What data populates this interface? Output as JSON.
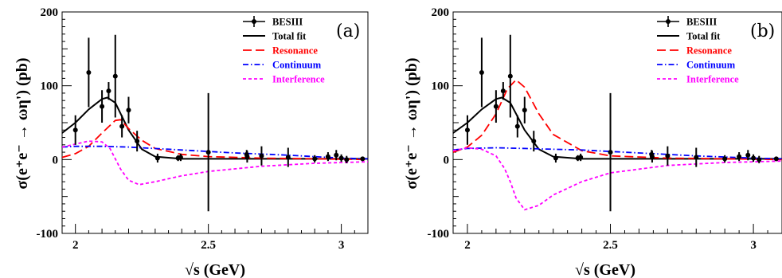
{
  "chart_data": [
    {
      "type": "line",
      "panel_label": "(a)",
      "xlabel": "√s (GeV)",
      "ylabel": "σ(e⁺e⁻ → ωη') (pb)",
      "xlim": [
        1.95,
        3.1
      ],
      "ylim": [
        -100,
        200
      ],
      "x_ticks": [
        2,
        2.5,
        3
      ],
      "y_ticks": [
        -100,
        0,
        100,
        200
      ],
      "legend_position": "top-right",
      "legend": [
        "BESIII",
        "Total fit",
        "Resonance",
        "Continuum",
        "Interference"
      ],
      "data_points": {
        "name": "BESIII",
        "x": [
          2.0,
          2.05,
          2.1,
          2.125,
          2.15,
          2.175,
          2.2,
          2.232,
          2.309,
          2.386,
          2.396,
          2.5,
          2.644,
          2.646,
          2.7,
          2.8,
          2.9,
          2.95,
          2.981,
          3.0,
          3.02,
          3.08
        ],
        "y": [
          40,
          118,
          72,
          93,
          113,
          45,
          67,
          25,
          2,
          2,
          3,
          10,
          7,
          4,
          5,
          3,
          1,
          4,
          6,
          2,
          0,
          1
        ],
        "yerr": [
          20,
          47,
          22,
          12,
          56,
          15,
          18,
          14,
          6,
          4,
          5,
          80,
          6,
          8,
          13,
          13,
          5,
          6,
          7,
          5,
          5,
          3
        ]
      },
      "series": [
        {
          "name": "Total fit",
          "color": "#000000",
          "x": [
            1.95,
            2.0,
            2.05,
            2.1,
            2.12,
            2.15,
            2.2,
            2.25,
            2.3,
            2.4,
            2.5,
            2.7,
            2.9,
            3.1
          ],
          "y": [
            36,
            50,
            68,
            82,
            84,
            77,
            40,
            14,
            4,
            1,
            1,
            1,
            1,
            1
          ]
        },
        {
          "name": "Resonance",
          "color": "#ff0000",
          "x": [
            1.95,
            2.0,
            2.05,
            2.1,
            2.15,
            2.17,
            2.2,
            2.25,
            2.3,
            2.4,
            2.5,
            2.7,
            2.9,
            3.1
          ],
          "y": [
            3,
            8,
            18,
            36,
            53,
            54,
            42,
            26,
            15,
            7,
            4,
            2,
            1,
            0
          ]
        },
        {
          "name": "Continuum",
          "color": "#0000ff",
          "x": [
            1.95,
            2.0,
            2.1,
            2.2,
            2.4,
            2.6,
            2.8,
            3.0,
            3.1
          ],
          "y": [
            17,
            18,
            18,
            17,
            13,
            9,
            6,
            2,
            1
          ]
        },
        {
          "name": "Interference",
          "color": "#ff00ff",
          "x": [
            1.95,
            2.0,
            2.05,
            2.1,
            2.13,
            2.17,
            2.2,
            2.24,
            2.3,
            2.4,
            2.5,
            2.7,
            2.9,
            3.1
          ],
          "y": [
            17,
            21,
            25,
            24,
            15,
            -13,
            -28,
            -34,
            -30,
            -22,
            -16,
            -9,
            -5,
            -3
          ]
        }
      ]
    },
    {
      "type": "line",
      "panel_label": "(b)",
      "xlabel": "√s (GeV)",
      "ylabel": "σ(e⁺e⁻ → ωη') (pb)",
      "xlim": [
        1.95,
        3.1
      ],
      "ylim": [
        -100,
        200
      ],
      "x_ticks": [
        2,
        2.5,
        3
      ],
      "y_ticks": [
        -100,
        0,
        100,
        200
      ],
      "legend_position": "top-right",
      "legend": [
        "BESIII",
        "Total fit",
        "Resonance",
        "Continuum",
        "Interference"
      ],
      "data_points": {
        "name": "BESIII",
        "x": [
          2.0,
          2.05,
          2.1,
          2.125,
          2.15,
          2.175,
          2.2,
          2.232,
          2.309,
          2.386,
          2.396,
          2.5,
          2.644,
          2.646,
          2.7,
          2.8,
          2.9,
          2.95,
          2.981,
          3.0,
          3.02,
          3.08
        ],
        "y": [
          40,
          118,
          72,
          93,
          113,
          45,
          67,
          25,
          2,
          2,
          3,
          10,
          7,
          4,
          5,
          3,
          1,
          4,
          6,
          2,
          0,
          1
        ],
        "yerr": [
          20,
          47,
          22,
          12,
          56,
          15,
          18,
          14,
          6,
          4,
          5,
          80,
          6,
          8,
          13,
          13,
          5,
          6,
          7,
          5,
          5,
          3
        ]
      },
      "series": [
        {
          "name": "Total fit",
          "color": "#000000",
          "x": [
            1.95,
            2.0,
            2.05,
            2.1,
            2.12,
            2.15,
            2.2,
            2.25,
            2.3,
            2.4,
            2.5,
            2.7,
            2.9,
            3.1
          ],
          "y": [
            36,
            50,
            68,
            82,
            84,
            77,
            40,
            14,
            4,
            1,
            1,
            1,
            1,
            1
          ]
        },
        {
          "name": "Resonance",
          "color": "#ff0000",
          "x": [
            1.95,
            2.0,
            2.05,
            2.1,
            2.14,
            2.17,
            2.2,
            2.25,
            2.3,
            2.4,
            2.5,
            2.7,
            2.9,
            3.1
          ],
          "y": [
            10,
            17,
            33,
            62,
            96,
            108,
            98,
            62,
            34,
            12,
            5,
            2,
            1,
            0
          ]
        },
        {
          "name": "Continuum",
          "color": "#0000ff",
          "x": [
            1.95,
            2.0,
            2.1,
            2.2,
            2.4,
            2.6,
            2.8,
            3.0,
            3.1
          ],
          "y": [
            13,
            15,
            16,
            15,
            13,
            9,
            5,
            2,
            1
          ]
        },
        {
          "name": "Interference",
          "color": "#ff00ff",
          "x": [
            1.95,
            2.0,
            2.05,
            2.1,
            2.13,
            2.15,
            2.17,
            2.2,
            2.25,
            2.3,
            2.4,
            2.5,
            2.7,
            2.9,
            3.1
          ],
          "y": [
            12,
            16,
            14,
            5,
            -12,
            -30,
            -52,
            -68,
            -62,
            -48,
            -30,
            -18,
            -8,
            -4,
            -2
          ]
        }
      ]
    }
  ]
}
